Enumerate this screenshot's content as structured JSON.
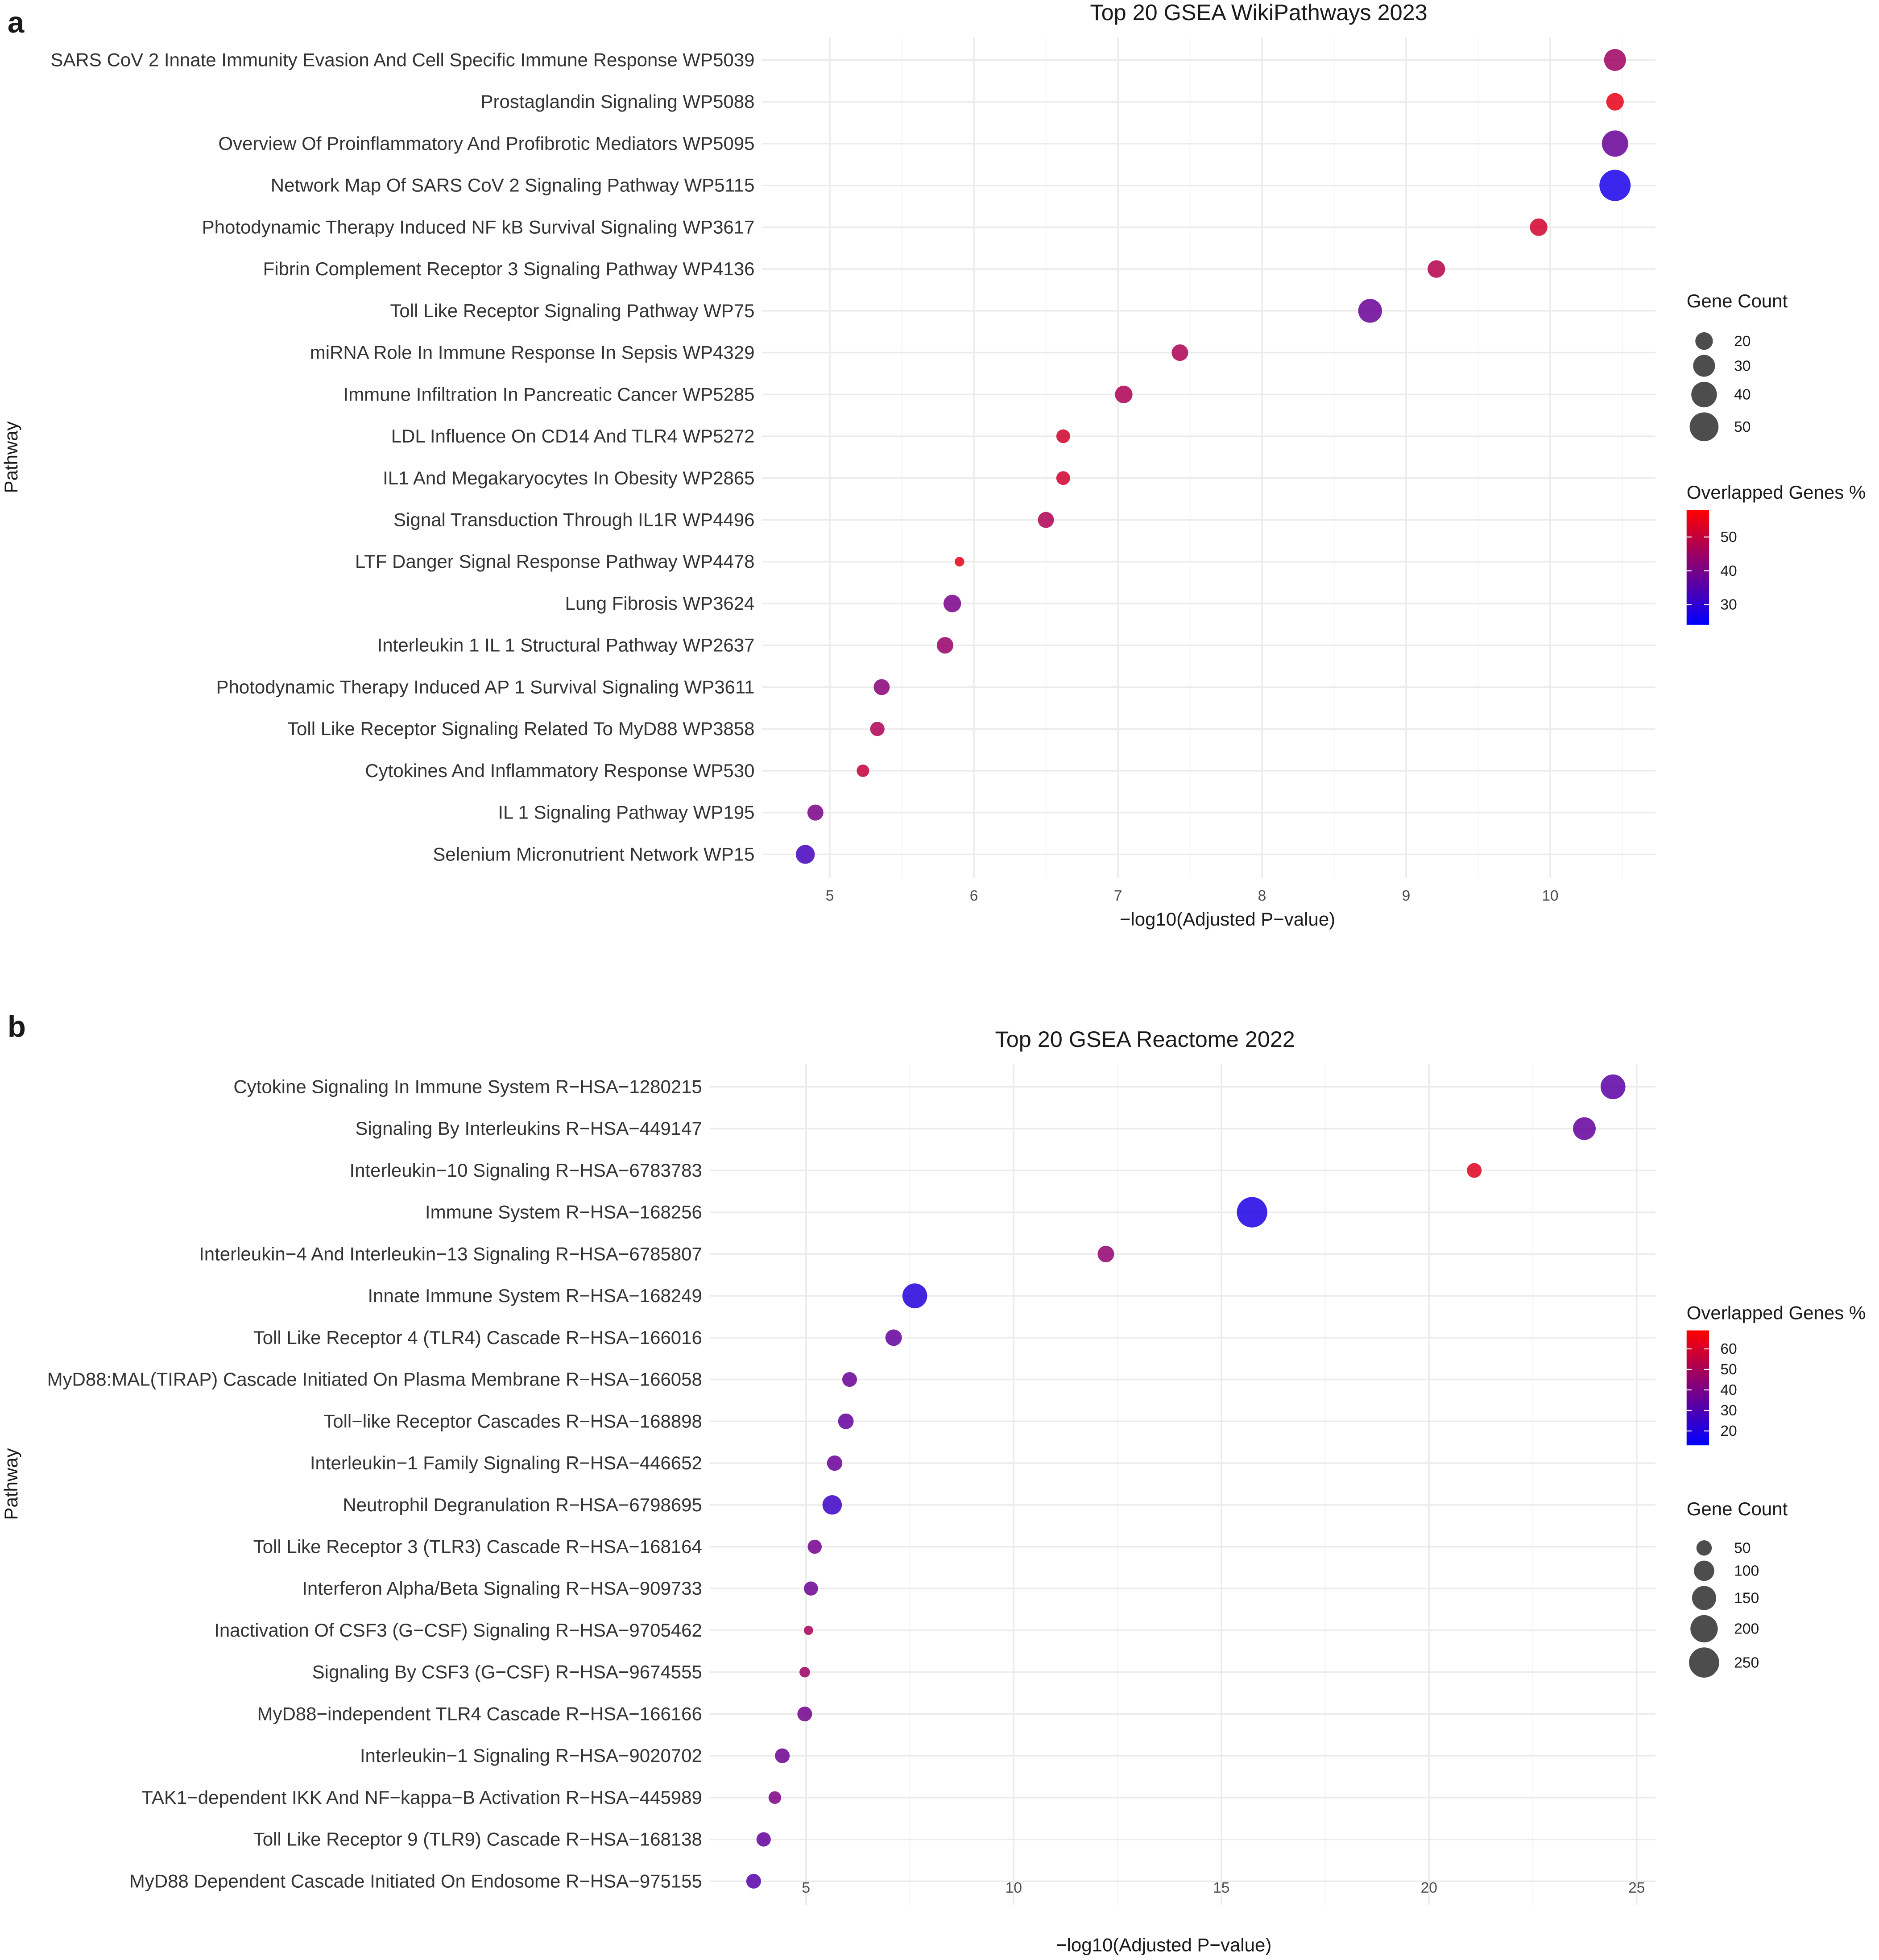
{
  "chart_data": [
    {
      "type": "scatter",
      "panel": "a",
      "title": "Top 20 GSEA WikiPathways 2023",
      "xlabel": "−log10(Adjusted P−value)",
      "ylabel": "Pathway",
      "xlim": [
        4.53,
        10.73
      ],
      "xticks": [
        5,
        6,
        7,
        8,
        9,
        10
      ],
      "grid": true,
      "color_low": "#0000ff",
      "color_high": "#ff0000",
      "color_range": [
        24,
        58
      ],
      "size_range": [
        6,
        58
      ],
      "legend_size": {
        "title": "Gene Count",
        "values": [
          20,
          30,
          40,
          50
        ]
      },
      "legend_color": {
        "title": "Overlapped Genes %",
        "values": [
          50,
          40,
          30
        ]
      },
      "legend_order": [
        "size",
        "color"
      ],
      "points": [
        {
          "pathway": "SARS CoV 2 Innate Immunity Evasion And Cell Specific Immune Response WP5039",
          "x": 10.45,
          "count": 30,
          "overlap": 45
        },
        {
          "pathway": "Prostaglandin Signaling WP5088",
          "x": 10.45,
          "count": 20,
          "overlap": 55
        },
        {
          "pathway": "Overview Of Proinflammatory And Profibrotic Mediators WP5095",
          "x": 10.45,
          "count": 42,
          "overlap": 38
        },
        {
          "pathway": "Network Map Of SARS CoV 2 Signaling Pathway WP5115",
          "x": 10.45,
          "count": 58,
          "overlap": 27
        },
        {
          "pathway": "Photodynamic Therapy Induced NF kB Survival Signaling WP3617",
          "x": 9.92,
          "count": 20,
          "overlap": 52
        },
        {
          "pathway": "Fibrin Complement Receptor 3 Signaling Pathway WP4136",
          "x": 9.21,
          "count": 20,
          "overlap": 48
        },
        {
          "pathway": "Toll Like Receptor Signaling Pathway WP75",
          "x": 8.75,
          "count": 35,
          "overlap": 38
        },
        {
          "pathway": "miRNA Role In Immune Response In Sepsis WP4329",
          "x": 7.43,
          "count": 18,
          "overlap": 47
        },
        {
          "pathway": "Immune Infiltration In Pancreatic Cancer WP5285",
          "x": 7.04,
          "count": 20,
          "overlap": 47
        },
        {
          "pathway": "LDL Influence On CD14 And TLR4 WP5272",
          "x": 6.62,
          "count": 13,
          "overlap": 52
        },
        {
          "pathway": "IL1 And Megakaryocytes In Obesity WP2865",
          "x": 6.62,
          "count": 13,
          "overlap": 52
        },
        {
          "pathway": "Signal Transduction Through IL1R WP4496",
          "x": 6.5,
          "count": 17,
          "overlap": 47
        },
        {
          "pathway": "LTF Danger Signal Response Pathway WP4478",
          "x": 5.9,
          "count": 7,
          "overlap": 55
        },
        {
          "pathway": "Lung Fibrosis WP3624",
          "x": 5.85,
          "count": 20,
          "overlap": 40
        },
        {
          "pathway": "Interleukin 1 IL 1 Structural Pathway WP2637",
          "x": 5.8,
          "count": 18,
          "overlap": 44
        },
        {
          "pathway": "Photodynamic Therapy Induced AP 1 Survival Signaling WP3611",
          "x": 5.36,
          "count": 17,
          "overlap": 42
        },
        {
          "pathway": "Toll Like Receptor Signaling Related To MyD88 WP3858",
          "x": 5.33,
          "count": 14,
          "overlap": 47
        },
        {
          "pathway": "Cytokines And Inflammatory Response WP530",
          "x": 5.23,
          "count": 11,
          "overlap": 50
        },
        {
          "pathway": "IL 1 Signaling Pathway WP195",
          "x": 4.9,
          "count": 17,
          "overlap": 40
        },
        {
          "pathway": "Selenium Micronutrient Network WP15",
          "x": 4.83,
          "count": 23,
          "overlap": 33
        }
      ]
    },
    {
      "type": "scatter",
      "panel": "b",
      "title": "Top 20 GSEA Reactome 2022",
      "xlabel": "−log10(Adjusted P−value)",
      "ylabel": "Pathway",
      "xlim": [
        2.68,
        25.45
      ],
      "xticks": [
        5,
        10,
        15,
        20,
        25
      ],
      "grid": true,
      "color_low": "#0000ff",
      "color_high": "#ff0000",
      "color_range": [
        13,
        69
      ],
      "size_range": [
        10,
        270
      ],
      "legend_size": {
        "title": "Gene Count",
        "values": [
          50,
          100,
          150,
          200,
          250
        ]
      },
      "legend_color": {
        "title": "Overlapped Genes %",
        "values": [
          60,
          50,
          40,
          30,
          20
        ]
      },
      "legend_order": [
        "color",
        "size"
      ],
      "points": [
        {
          "pathway": "Cytokine Signaling In Immune System R−HSA−1280215",
          "x": 24.43,
          "count": 160,
          "overlap": 33
        },
        {
          "pathway": "Signaling By Interleukins R−HSA−449147",
          "x": 23.74,
          "count": 130,
          "overlap": 35
        },
        {
          "pathway": "Interleukin−10 Signaling R−HSA−6783783",
          "x": 21.09,
          "count": 45,
          "overlap": 62
        },
        {
          "pathway": "Immune System R−HSA−168256",
          "x": 15.74,
          "count": 255,
          "overlap": 19
        },
        {
          "pathway": "Interleukin−4 And Interleukin−13 Signaling R−HSA−6785807",
          "x": 12.22,
          "count": 60,
          "overlap": 45
        },
        {
          "pathway": "Innate Immune System R−HSA−168249",
          "x": 7.62,
          "count": 160,
          "overlap": 21
        },
        {
          "pathway": "Toll Like Receptor 4 (TLR4) Cascade R−HSA−166016",
          "x": 7.11,
          "count": 60,
          "overlap": 35
        },
        {
          "pathway": "MyD88:MAL(TIRAP) Cascade Initiated On Plasma Membrane R−HSA−166058",
          "x": 6.05,
          "count": 45,
          "overlap": 36
        },
        {
          "pathway": "Toll−like Receptor Cascades R−HSA−168898",
          "x": 5.96,
          "count": 52,
          "overlap": 35
        },
        {
          "pathway": "Interleukin−1 Family Signaling R−HSA−446652",
          "x": 5.69,
          "count": 50,
          "overlap": 36
        },
        {
          "pathway": "Neutrophil Degranulation R−HSA−6798695",
          "x": 5.63,
          "count": 90,
          "overlap": 26
        },
        {
          "pathway": "Toll Like Receptor 3 (TLR3) Cascade R−HSA−168164",
          "x": 5.21,
          "count": 40,
          "overlap": 38
        },
        {
          "pathway": "Interferon Alpha/Beta Signaling R−HSA−909733",
          "x": 5.12,
          "count": 40,
          "overlap": 37
        },
        {
          "pathway": "Inactivation Of CSF3 (G−CSF) Signaling R−HSA−9705462",
          "x": 5.06,
          "count": 12,
          "overlap": 50
        },
        {
          "pathway": "Signaling By CSF3 (G−CSF) R−HSA−9674555",
          "x": 4.97,
          "count": 18,
          "overlap": 47
        },
        {
          "pathway": "MyD88−independent TLR4 Cascade R−HSA−166166",
          "x": 4.97,
          "count": 45,
          "overlap": 38
        },
        {
          "pathway": "Interleukin−1 Signaling R−HSA−9020702",
          "x": 4.43,
          "count": 45,
          "overlap": 37
        },
        {
          "pathway": "TAK1−dependent IKK And NF−kappa−B Activation R−HSA−445989",
          "x": 4.25,
          "count": 30,
          "overlap": 40
        },
        {
          "pathway": "Toll Like Receptor 9 (TLR9) Cascade R−HSA−168138",
          "x": 3.98,
          "count": 42,
          "overlap": 35
        },
        {
          "pathway": "MyD88 Dependent Cascade Initiated On Endosome R−HSA−975155",
          "x": 3.74,
          "count": 45,
          "overlap": 32
        }
      ]
    }
  ]
}
